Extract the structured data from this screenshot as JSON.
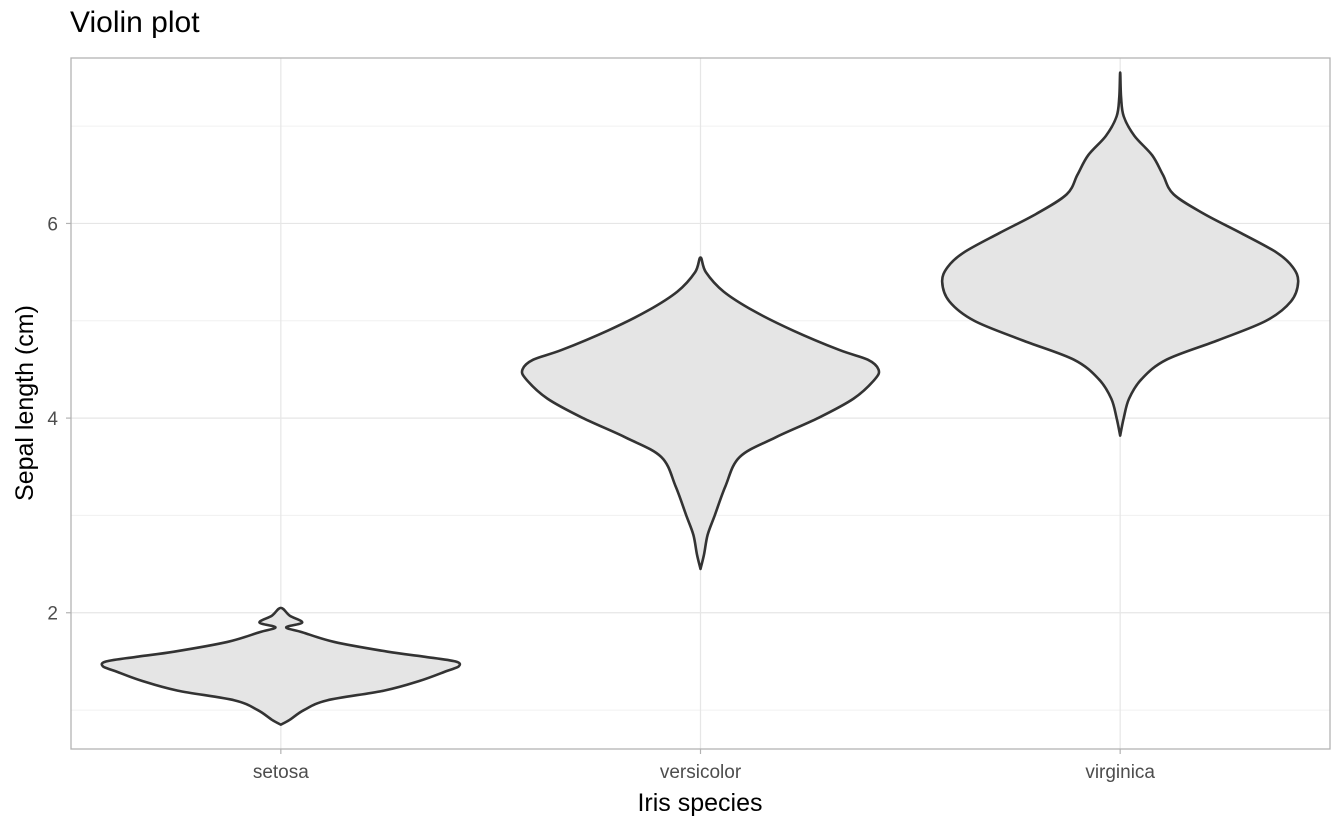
{
  "chart_data": {
    "type": "violin",
    "title": "Violin plot",
    "xlabel": "Iris species",
    "ylabel": "Sepal length (cm)",
    "categories": [
      "setosa",
      "versicolor",
      "virginica"
    ],
    "ylim": [
      0.6,
      7.7
    ],
    "yticks": [
      2,
      4,
      6
    ],
    "grid": true,
    "colors": {
      "fill": "#e5e5e5",
      "stroke": "#333333",
      "grid": "#e6e6e6",
      "panel_border": "#b3b3b3"
    },
    "violins": [
      {
        "category": "setosa",
        "min": 0.85,
        "max": 2.05,
        "profile": [
          [
            0.85,
            0.0
          ],
          [
            0.9,
            0.05
          ],
          [
            1.0,
            0.13
          ],
          [
            1.1,
            0.26
          ],
          [
            1.2,
            0.58
          ],
          [
            1.3,
            0.78
          ],
          [
            1.4,
            0.93
          ],
          [
            1.45,
            1.0
          ],
          [
            1.5,
            0.98
          ],
          [
            1.55,
            0.8
          ],
          [
            1.6,
            0.6
          ],
          [
            1.7,
            0.3
          ],
          [
            1.8,
            0.12
          ],
          [
            1.85,
            0.03
          ],
          [
            1.9,
            0.12
          ],
          [
            1.97,
            0.05
          ],
          [
            2.05,
            0.0
          ]
        ]
      },
      {
        "category": "versicolor",
        "min": 2.45,
        "max": 5.65,
        "profile": [
          [
            2.45,
            0.0
          ],
          [
            2.6,
            0.02
          ],
          [
            2.8,
            0.04
          ],
          [
            3.0,
            0.08
          ],
          [
            3.3,
            0.14
          ],
          [
            3.6,
            0.22
          ],
          [
            3.8,
            0.42
          ],
          [
            4.0,
            0.66
          ],
          [
            4.2,
            0.86
          ],
          [
            4.4,
            0.98
          ],
          [
            4.5,
            1.0
          ],
          [
            4.6,
            0.94
          ],
          [
            4.7,
            0.78
          ],
          [
            4.9,
            0.52
          ],
          [
            5.1,
            0.3
          ],
          [
            5.3,
            0.13
          ],
          [
            5.5,
            0.03
          ],
          [
            5.65,
            0.0
          ]
        ]
      },
      {
        "category": "virginica",
        "min": 3.82,
        "max": 7.55,
        "profile": [
          [
            3.82,
            0.0
          ],
          [
            4.0,
            0.02
          ],
          [
            4.2,
            0.05
          ],
          [
            4.4,
            0.12
          ],
          [
            4.6,
            0.26
          ],
          [
            4.8,
            0.55
          ],
          [
            5.0,
            0.82
          ],
          [
            5.2,
            0.96
          ],
          [
            5.4,
            1.0
          ],
          [
            5.55,
            0.97
          ],
          [
            5.7,
            0.88
          ],
          [
            5.9,
            0.68
          ],
          [
            6.1,
            0.47
          ],
          [
            6.3,
            0.3
          ],
          [
            6.5,
            0.24
          ],
          [
            6.7,
            0.18
          ],
          [
            6.9,
            0.08
          ],
          [
            7.1,
            0.02
          ],
          [
            7.3,
            0.005
          ],
          [
            7.55,
            0.0
          ]
        ]
      }
    ]
  }
}
